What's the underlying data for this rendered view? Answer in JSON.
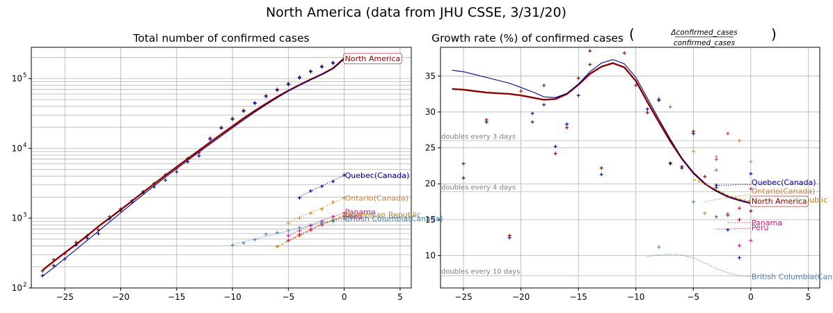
{
  "figure": {
    "suptitle": "North America (data from JHU CSSE, 3/31/20)"
  },
  "chart_data": [
    {
      "type": "line",
      "title": "Total number of confirmed cases",
      "xlabel": "",
      "ylabel": "",
      "yscale": "log",
      "xlim": [
        -28,
        6
      ],
      "ylim": [
        100,
        280000
      ],
      "xticks": [
        -25,
        -20,
        -15,
        -10,
        -5,
        0,
        5
      ],
      "xtick_labels": [
        "−25",
        "−20",
        "−15",
        "−10",
        "−5",
        "0",
        "5"
      ],
      "ytick_labels": [
        "10",
        "10",
        "10",
        "10"
      ],
      "ytick_exponents": [
        "2",
        "3",
        "4",
        "5"
      ],
      "grid": true,
      "series": [
        {
          "name": "North America",
          "color": "#8b0000",
          "style": "thick",
          "x": [
            -27,
            -26,
            -25,
            -24,
            -23,
            -22,
            -21,
            -20,
            -19,
            -18,
            -17,
            -16,
            -15,
            -14,
            -13,
            -12,
            -11,
            -10,
            -9,
            -8,
            -7,
            -6,
            -5,
            -4,
            -3,
            -2,
            -1,
            0
          ],
          "y": [
            180,
            240,
            320,
            420,
            560,
            760,
            1000,
            1320,
            1750,
            2350,
            3100,
            4100,
            5400,
            7100,
            9300,
            12200,
            15900,
            20700,
            27000,
            34500,
            43500,
            54500,
            67000,
            81000,
            97000,
            115000,
            140000,
            195000
          ]
        },
        {
          "name": "",
          "color": "#00008b",
          "style": "thin",
          "x": [
            -27,
            -26,
            -25,
            -24,
            -23,
            -22,
            -21,
            -20,
            -19,
            -18,
            -17,
            -16,
            -15,
            -14,
            -13,
            -12,
            -11,
            -10,
            -9,
            -8,
            -7,
            -6,
            -5,
            -4,
            -3,
            -2,
            -1,
            0
          ],
          "y": [
            148,
            195,
            265,
            355,
            480,
            650,
            880,
            1190,
            1610,
            2170,
            2900,
            3860,
            5100,
            6700,
            8800,
            11500,
            15000,
            19600,
            25500,
            33000,
            42000,
            53000,
            66000,
            80000,
            96000,
            114000,
            138000,
            190000
          ]
        },
        {
          "name": "Quebec(Canada)",
          "color": "#00008b",
          "style": "dotted",
          "x": [
            -4,
            -3,
            -2,
            -1,
            0
          ],
          "y": [
            2000,
            2450,
            2900,
            3450,
            4100
          ]
        },
        {
          "name": "Ontario(Canada)",
          "color": "#cd853f",
          "style": "dotted",
          "x": [
            -5,
            -4,
            -3,
            -2,
            -1,
            0
          ],
          "y": [
            850,
            1020,
            1200,
            1400,
            1650,
            1950
          ]
        },
        {
          "name": "Panama",
          "color": "#c71585",
          "style": "dotted",
          "x": [
            -5,
            -4,
            -3,
            -2,
            -1,
            0
          ],
          "y": [
            560,
            670,
            800,
            920,
            1050,
            1200
          ]
        },
        {
          "name": "Dominican Republic",
          "color": "#b8860b",
          "style": "dashed",
          "x": [
            -6,
            -5,
            -4,
            -3,
            -2,
            -1,
            0
          ],
          "y": [
            390,
            470,
            560,
            680,
            820,
            940,
            1100
          ]
        },
        {
          "name": "Peru",
          "color": "#dc143c",
          "style": "dotted",
          "x": [
            -5,
            -4,
            -3,
            -2,
            -1,
            0
          ],
          "y": [
            480,
            580,
            690,
            810,
            920,
            1050
          ]
        },
        {
          "name": "British Columbia(Canada)",
          "color": "#4682b4",
          "style": "dotted",
          "x": [
            -10,
            -9,
            -8,
            -7,
            -6,
            -5,
            -4,
            -3,
            -2,
            -1,
            0
          ],
          "y": [
            420,
            460,
            500,
            550,
            600,
            660,
            720,
            790,
            860,
            920,
            970
          ]
        }
      ],
      "markers": [
        {
          "color": "#8b0000",
          "x": [
            -27,
            -26,
            -25,
            -24,
            -23,
            -22,
            -21,
            -20,
            -19,
            -18,
            -17,
            -16,
            -15,
            -14,
            -13,
            -12,
            -11,
            -10,
            -9,
            -8,
            -7,
            -6,
            -5,
            -4,
            -3,
            -2,
            -1,
            0
          ],
          "y": [
            175,
            255,
            310,
            450,
            560,
            680,
            1050,
            1360,
            1780,
            2400,
            3150,
            4200,
            5200,
            7200,
            8600,
            14000,
            20000,
            27000,
            35000,
            45000,
            57000,
            70000,
            85000,
            105000,
            128000,
            150000,
            170000,
            190000
          ]
        },
        {
          "color": "#00008b",
          "x": [
            -27,
            -26,
            -25,
            -24,
            -23,
            -22,
            -21,
            -20,
            -19,
            -18,
            -17,
            -16,
            -15,
            -14,
            -13,
            -12,
            -11,
            -10,
            -9,
            -8,
            -7,
            -6,
            -5,
            -4,
            -3,
            -2,
            -1,
            0
          ],
          "y": [
            150,
            210,
            260,
            410,
            520,
            600,
            980,
            1280,
            1700,
            2300,
            2800,
            3500,
            4600,
            6400,
            7800,
            13500,
            19400,
            26000,
            34000,
            44000,
            55000,
            68000,
            82000,
            102000,
            125000,
            146000,
            165000,
            185000
          ]
        },
        {
          "color": "#00008b",
          "x": [
            -4,
            -3,
            -2,
            -1,
            0
          ],
          "y": [
            1950,
            2450,
            2850,
            3350,
            4150
          ]
        },
        {
          "color": "#cd853f",
          "x": [
            -5,
            -4,
            -3,
            -2,
            -1,
            0
          ],
          "y": [
            850,
            1000,
            1180,
            1350,
            1700,
            1950
          ]
        },
        {
          "color": "#c71585",
          "x": [
            -5,
            -4,
            -3,
            -2,
            -1,
            0
          ],
          "y": [
            560,
            660,
            780,
            900,
            1050,
            1180
          ]
        },
        {
          "color": "#b8860b",
          "x": [
            -6,
            -5,
            -4,
            -3,
            -2,
            -1,
            0
          ],
          "y": [
            390,
            480,
            560,
            690,
            830,
            950,
            1100
          ]
        },
        {
          "color": "#dc143c",
          "x": [
            -5,
            -4,
            -3,
            -2,
            -1,
            0
          ],
          "y": [
            480,
            580,
            680,
            800,
            910,
            1050
          ]
        },
        {
          "color": "#4682b4",
          "x": [
            -10,
            -9,
            -8,
            -7,
            -6,
            -5,
            -4,
            -3,
            -2,
            -1,
            0
          ],
          "y": [
            410,
            440,
            490,
            590,
            620,
            660,
            730,
            800,
            860,
            900,
            970
          ]
        }
      ],
      "labels": [
        {
          "text": "North America",
          "x": 0,
          "y": 195000,
          "color": "#8b0000",
          "boxed": true
        },
        {
          "text": "Quebec(Canada)",
          "x": 0,
          "y": 4100,
          "color": "#00008b"
        },
        {
          "text": "Ontario(Canada)",
          "x": 0,
          "y": 1950,
          "color": "#cd853f"
        },
        {
          "text": "Panama",
          "x": 0,
          "y": 1230,
          "color": "#c71585"
        },
        {
          "text": "Dominican Republic",
          "x": 0,
          "y": 1120,
          "color": "#b8860b"
        },
        {
          "text": "Peru",
          "x": 0,
          "y": 1060,
          "color": "#dc143c"
        },
        {
          "text": "British Columbia(Canada)",
          "x": 0,
          "y": 990,
          "color": "#4682b4"
        }
      ]
    },
    {
      "type": "line",
      "title": "Growth rate (%) of confirmed cases",
      "title_fraction_numerator": "Δconfirmed_cases",
      "title_fraction_denominator": "confirmed_cases",
      "xlabel": "",
      "ylabel": "",
      "xlim": [
        -27,
        6
      ],
      "ylim": [
        5.5,
        39
      ],
      "xticks": [
        -25,
        -20,
        -15,
        -10,
        -5,
        0,
        5
      ],
      "xtick_labels": [
        "−25",
        "−20",
        "−15",
        "−10",
        "−5",
        "0",
        "5"
      ],
      "yticks": [
        10,
        15,
        20,
        25,
        30,
        35
      ],
      "ytick_labels": [
        "10",
        "15",
        "20",
        "25",
        "30",
        "35"
      ],
      "grid": true,
      "reference_lines": [
        {
          "text": "doubles every 3 days",
          "y": 26.0
        },
        {
          "text": "doubles every 4 days",
          "y": 18.9
        },
        {
          "text": "doubles every 10 days",
          "y": 7.2
        }
      ],
      "series": [
        {
          "name": "North America",
          "color": "#8b0000",
          "style": "thick",
          "x": [
            -26,
            -25,
            -24,
            -23,
            -22,
            -21,
            -20,
            -19,
            -18,
            -17,
            -16,
            -15,
            -14,
            -13,
            -12,
            -11,
            -10,
            -9,
            -8,
            -7,
            -6,
            -5,
            -4,
            -3,
            -2,
            -1,
            0
          ],
          "y": [
            33.2,
            33.1,
            32.9,
            32.7,
            32.6,
            32.5,
            32.3,
            32.0,
            31.7,
            31.8,
            32.5,
            33.8,
            35.3,
            36.3,
            36.8,
            36.2,
            34.3,
            31.4,
            28.6,
            25.9,
            23.5,
            21.5,
            20.0,
            19.0,
            18.2,
            17.7,
            17.3
          ]
        },
        {
          "name": "",
          "color": "#00008b",
          "style": "thin",
          "x": [
            -26,
            -25,
            -24,
            -23,
            -22,
            -21,
            -20,
            -19,
            -18,
            -17,
            -16,
            -15,
            -14,
            -13,
            -12,
            -11,
            -10,
            -9,
            -8,
            -7,
            -6,
            -5,
            -4,
            -3,
            -2,
            -1,
            0
          ],
          "y": [
            35.8,
            35.6,
            35.2,
            34.8,
            34.4,
            34.0,
            33.4,
            32.8,
            32.1,
            32.0,
            32.6,
            33.9,
            35.6,
            36.8,
            37.3,
            36.7,
            34.8,
            31.9,
            29.0,
            26.2,
            23.6,
            21.6,
            20.1,
            19.0,
            18.2,
            17.7,
            17.3
          ]
        },
        {
          "name": "Quebec(Canada)",
          "color": "#00008b",
          "style": "dotted",
          "x": [
            -3,
            -2,
            -1,
            0
          ],
          "y": [
            19.8,
            19.8,
            19.9,
            19.9
          ]
        },
        {
          "name": "Ontario(Canada)",
          "color": "#cd853f",
          "style": "dotted",
          "x": [
            -4,
            -3,
            -2,
            -1,
            0
          ],
          "y": [
            17.5,
            17.8,
            18.1,
            18.3,
            18.5
          ]
        },
        {
          "name": "Dominican Republic",
          "color": "#b8860b",
          "style": "dashed",
          "x": [
            -5,
            -4,
            -3,
            -2,
            -1,
            0
          ],
          "y": [
            20.6,
            20.0,
            19.2,
            18.4,
            17.9,
            17.6
          ]
        },
        {
          "name": "Panama",
          "color": "#c71585",
          "style": "dotted",
          "x": [
            -2,
            -1,
            0
          ],
          "y": [
            14.6,
            14.6,
            14.6
          ]
        },
        {
          "name": "Peru",
          "color": "#dc143c",
          "style": "dotted",
          "x": [
            -3,
            -2,
            -1,
            0
          ],
          "y": [
            13.7,
            13.7,
            13.8,
            13.8
          ]
        },
        {
          "name": "British Columbia(Canada)",
          "color": "#4682b4",
          "style": "dotted",
          "x": [
            -9,
            -8,
            -7,
            -6,
            -5,
            -4,
            -3,
            -2,
            -1,
            0
          ],
          "y": [
            9.9,
            10.1,
            10.2,
            10.1,
            9.7,
            9.0,
            8.2,
            7.6,
            7.2,
            7.1
          ]
        }
      ],
      "markers": [
        {
          "color": "#8b0000",
          "x": [
            -25,
            -23,
            -21,
            -20,
            -19,
            -18,
            -17,
            -16,
            -15,
            -14,
            -13,
            -11,
            -10,
            -9,
            -8,
            -7,
            -6,
            -5,
            -4,
            -3,
            -2,
            -1,
            0
          ],
          "y": [
            22.8,
            28.9,
            12.8,
            32.9,
            28.6,
            33.7,
            24.2,
            27.8,
            34.7,
            36.6,
            22.2,
            38.2,
            33.7,
            29.9,
            31.8,
            22.9,
            22.4,
            27.3,
            21.0,
            19.5,
            15.8,
            15.0,
            16.2
          ]
        },
        {
          "color": "#8b0000",
          "x": [
            -14
          ],
          "y": [
            38.5
          ]
        },
        {
          "color": "#00008b",
          "x": [
            -25,
            -23,
            -21,
            -19,
            -18,
            -17,
            -16,
            -15,
            -13,
            -9,
            -8,
            -7,
            -6,
            -5,
            -3,
            -2,
            -1,
            0
          ],
          "y": [
            20.8,
            28.6,
            12.5,
            29.8,
            31.0,
            25.2,
            28.3,
            32.3,
            21.3,
            30.4,
            31.6,
            22.8,
            22.2,
            27.0,
            19.8,
            13.6,
            9.7,
            21.4
          ]
        },
        {
          "color": "#4682b4",
          "x": [
            -8,
            -7,
            -5,
            -3,
            -2
          ],
          "y": [
            11.2,
            30.7,
            17.5,
            21.9,
            15.8
          ]
        },
        {
          "color": "#cd853f",
          "x": [
            -5,
            -4,
            -3,
            -1,
            0
          ],
          "y": [
            24.5,
            15.9,
            23.8,
            26.0,
            23.1
          ]
        },
        {
          "color": "#c71585",
          "x": [
            -3,
            -2,
            -1,
            0
          ],
          "y": [
            23.4,
            27.0,
            11.4,
            12.1
          ]
        },
        {
          "color": "#dc143c",
          "x": [
            -3,
            -2,
            -1,
            0
          ],
          "y": [
            15.4,
            15.6,
            16.6,
            19.3
          ]
        }
      ],
      "labels": [
        {
          "text": "Quebec(Canada)",
          "x": 0,
          "y": 20.2,
          "color": "#00008b"
        },
        {
          "text": "Ontario(Canada)",
          "x": 0,
          "y": 19.0,
          "color": "#cd853f"
        },
        {
          "text": "Dominican Republic",
          "x": 0,
          "y": 17.8,
          "color": "#b8860b"
        },
        {
          "text": "North America",
          "x": 0,
          "y": 17.6,
          "color": "#8b0000",
          "boxed": true
        },
        {
          "text": "Panama",
          "x": 0,
          "y": 14.6,
          "color": "#c71585"
        },
        {
          "text": "Peru",
          "x": 0,
          "y": 13.9,
          "color": "#c71585"
        },
        {
          "text": "British Columbia(Canada)",
          "x": 0,
          "y": 7.1,
          "color": "#4682b4"
        }
      ]
    }
  ]
}
